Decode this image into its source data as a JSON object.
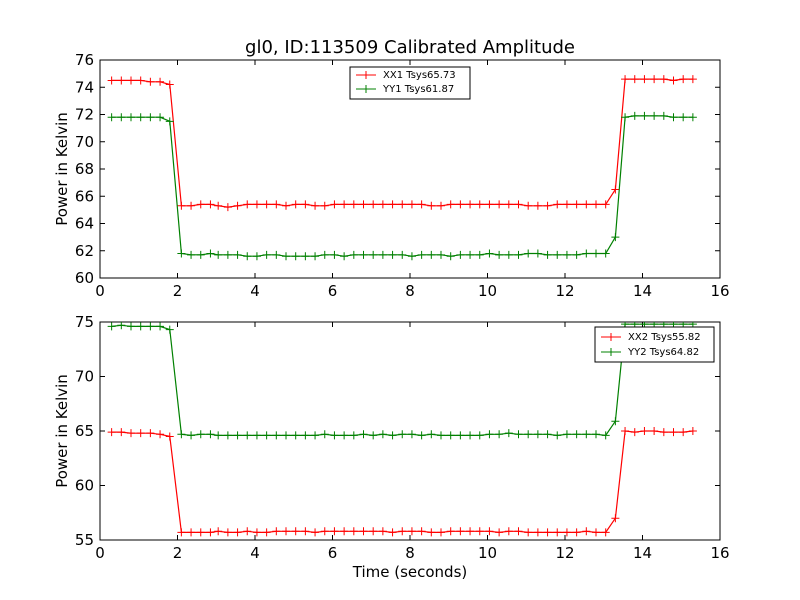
{
  "chart_data": [
    {
      "type": "line",
      "title": "gl0, ID:113509 Calibrated Amplitude",
      "xlabel": "",
      "ylabel": "Power in Kelvin",
      "xlim": [
        0,
        16
      ],
      "ylim": [
        60,
        76
      ],
      "xticks": [
        "0",
        "2",
        "4",
        "6",
        "8",
        "10",
        "12",
        "14",
        "16"
      ],
      "yticks": [
        "60",
        "62",
        "64",
        "66",
        "68",
        "70",
        "72",
        "74",
        "76"
      ],
      "legend_position": "top-center",
      "grid": false,
      "series": [
        {
          "name": "XX1 Tsys65.73",
          "color": "#ff0000",
          "x": [
            0.3,
            0.55,
            0.8,
            1.05,
            1.3,
            1.55,
            1.8,
            2.1,
            2.35,
            2.6,
            2.85,
            3.05,
            3.3,
            3.55,
            3.8,
            4.05,
            4.3,
            4.55,
            4.8,
            5.05,
            5.3,
            5.55,
            5.8,
            6.05,
            6.3,
            6.55,
            6.8,
            7.05,
            7.3,
            7.55,
            7.8,
            8.05,
            8.3,
            8.55,
            8.8,
            9.05,
            9.3,
            9.55,
            9.8,
            10.05,
            10.3,
            10.55,
            10.8,
            11.05,
            11.3,
            11.55,
            11.8,
            12.05,
            12.3,
            12.55,
            12.8,
            13.05,
            13.3,
            13.55,
            13.8,
            14.05,
            14.3,
            14.55,
            14.8,
            15.05,
            15.3
          ],
          "values": [
            74.5,
            74.5,
            74.5,
            74.5,
            74.4,
            74.4,
            74.2,
            65.3,
            65.3,
            65.4,
            65.4,
            65.3,
            65.2,
            65.3,
            65.4,
            65.4,
            65.4,
            65.4,
            65.3,
            65.4,
            65.4,
            65.3,
            65.3,
            65.4,
            65.4,
            65.4,
            65.4,
            65.4,
            65.4,
            65.4,
            65.4,
            65.4,
            65.4,
            65.3,
            65.3,
            65.4,
            65.4,
            65.4,
            65.4,
            65.4,
            65.4,
            65.4,
            65.4,
            65.3,
            65.3,
            65.3,
            65.4,
            65.4,
            65.4,
            65.4,
            65.4,
            65.4,
            66.5,
            74.6,
            74.6,
            74.6,
            74.6,
            74.6,
            74.5,
            74.6,
            74.6
          ]
        },
        {
          "name": "YY1 Tsys61.87",
          "color": "#008000",
          "x": [
            0.3,
            0.55,
            0.8,
            1.05,
            1.3,
            1.55,
            1.8,
            2.1,
            2.35,
            2.6,
            2.85,
            3.05,
            3.3,
            3.55,
            3.8,
            4.05,
            4.3,
            4.55,
            4.8,
            5.05,
            5.3,
            5.55,
            5.8,
            6.05,
            6.3,
            6.55,
            6.8,
            7.05,
            7.3,
            7.55,
            7.8,
            8.05,
            8.3,
            8.55,
            8.8,
            9.05,
            9.3,
            9.55,
            9.8,
            10.05,
            10.3,
            10.55,
            10.8,
            11.05,
            11.3,
            11.55,
            11.8,
            12.05,
            12.3,
            12.55,
            12.8,
            13.05,
            13.3,
            13.55,
            13.8,
            14.05,
            14.3,
            14.55,
            14.8,
            15.05,
            15.3
          ],
          "values": [
            71.8,
            71.8,
            71.8,
            71.8,
            71.8,
            71.8,
            71.5,
            61.8,
            61.7,
            61.7,
            61.8,
            61.7,
            61.7,
            61.7,
            61.6,
            61.6,
            61.7,
            61.7,
            61.6,
            61.6,
            61.6,
            61.6,
            61.7,
            61.7,
            61.6,
            61.7,
            61.7,
            61.7,
            61.7,
            61.7,
            61.7,
            61.6,
            61.7,
            61.7,
            61.7,
            61.6,
            61.7,
            61.7,
            61.7,
            61.8,
            61.7,
            61.7,
            61.7,
            61.8,
            61.8,
            61.7,
            61.7,
            61.7,
            61.7,
            61.8,
            61.8,
            61.8,
            63.0,
            71.8,
            71.9,
            71.9,
            71.9,
            71.9,
            71.8,
            71.8,
            71.8
          ]
        }
      ]
    },
    {
      "type": "line",
      "title": "",
      "xlabel": "Time (seconds)",
      "ylabel": "Power in Kelvin",
      "xlim": [
        0,
        16
      ],
      "ylim": [
        55,
        75
      ],
      "xticks": [
        "0",
        "2",
        "4",
        "6",
        "8",
        "10",
        "12",
        "14",
        "16"
      ],
      "yticks": [
        "55",
        "60",
        "65",
        "70",
        "75"
      ],
      "legend_position": "top-right",
      "grid": false,
      "series": [
        {
          "name": "XX2 Tsys55.82",
          "color": "#ff0000",
          "x": [
            0.3,
            0.55,
            0.8,
            1.05,
            1.3,
            1.55,
            1.8,
            2.1,
            2.35,
            2.6,
            2.85,
            3.05,
            3.3,
            3.55,
            3.8,
            4.05,
            4.3,
            4.55,
            4.8,
            5.05,
            5.3,
            5.55,
            5.8,
            6.05,
            6.3,
            6.55,
            6.8,
            7.05,
            7.3,
            7.55,
            7.8,
            8.05,
            8.3,
            8.55,
            8.8,
            9.05,
            9.3,
            9.55,
            9.8,
            10.05,
            10.3,
            10.55,
            10.8,
            11.05,
            11.3,
            11.55,
            11.8,
            12.05,
            12.3,
            12.55,
            12.8,
            13.05,
            13.3,
            13.55,
            13.8,
            14.05,
            14.3,
            14.55,
            14.8,
            15.05,
            15.3
          ],
          "values": [
            64.9,
            64.9,
            64.8,
            64.8,
            64.8,
            64.7,
            64.5,
            55.7,
            55.7,
            55.7,
            55.7,
            55.8,
            55.7,
            55.7,
            55.8,
            55.7,
            55.7,
            55.8,
            55.8,
            55.8,
            55.8,
            55.7,
            55.8,
            55.8,
            55.8,
            55.8,
            55.8,
            55.8,
            55.8,
            55.7,
            55.8,
            55.8,
            55.8,
            55.7,
            55.7,
            55.8,
            55.8,
            55.8,
            55.8,
            55.8,
            55.7,
            55.8,
            55.8,
            55.7,
            55.7,
            55.7,
            55.7,
            55.7,
            55.7,
            55.8,
            55.7,
            55.7,
            57.0,
            65.0,
            64.9,
            65.0,
            65.0,
            64.9,
            64.9,
            64.9,
            65.0
          ]
        },
        {
          "name": "YY2 Tsys64.82",
          "color": "#008000",
          "x": [
            0.3,
            0.55,
            0.8,
            1.05,
            1.3,
            1.55,
            1.8,
            2.1,
            2.35,
            2.6,
            2.85,
            3.05,
            3.3,
            3.55,
            3.8,
            4.05,
            4.3,
            4.55,
            4.8,
            5.05,
            5.3,
            5.55,
            5.8,
            6.05,
            6.3,
            6.55,
            6.8,
            7.05,
            7.3,
            7.55,
            7.8,
            8.05,
            8.3,
            8.55,
            8.8,
            9.05,
            9.3,
            9.55,
            9.8,
            10.05,
            10.3,
            10.55,
            10.8,
            11.05,
            11.3,
            11.55,
            11.8,
            12.05,
            12.3,
            12.55,
            12.8,
            13.05,
            13.3,
            13.55,
            13.8,
            14.05,
            14.3,
            14.55,
            14.8,
            15.05,
            15.3
          ],
          "values": [
            74.6,
            74.7,
            74.6,
            74.6,
            74.6,
            74.6,
            74.3,
            64.7,
            64.6,
            64.7,
            64.7,
            64.6,
            64.6,
            64.6,
            64.6,
            64.6,
            64.6,
            64.6,
            64.6,
            64.6,
            64.6,
            64.6,
            64.7,
            64.6,
            64.6,
            64.6,
            64.7,
            64.6,
            64.7,
            64.6,
            64.7,
            64.7,
            64.6,
            64.7,
            64.6,
            64.6,
            64.6,
            64.6,
            64.6,
            64.7,
            64.7,
            64.8,
            64.7,
            64.7,
            64.7,
            64.7,
            64.6,
            64.7,
            64.7,
            64.7,
            64.7,
            64.6,
            65.9,
            74.8,
            74.8,
            74.8,
            74.8,
            74.8,
            74.8,
            74.8,
            74.8
          ]
        }
      ]
    }
  ]
}
